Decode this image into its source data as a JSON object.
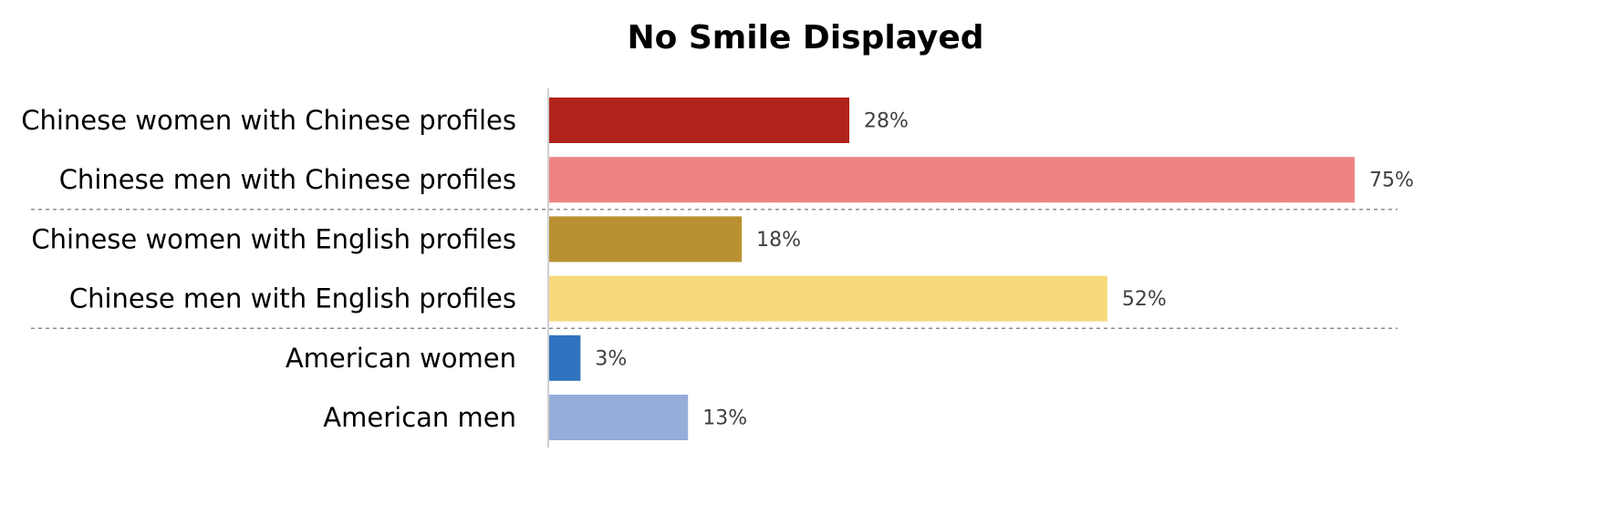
{
  "chart_data": {
    "type": "bar",
    "orientation": "horizontal",
    "title": "No Smile Displayed",
    "categories": [
      "Chinese women with Chinese profiles",
      "Chinese men with Chinese profiles",
      "Chinese women with English profiles",
      "Chinese men with English profiles",
      "American women",
      "American men"
    ],
    "values": [
      28,
      75,
      18,
      52,
      3,
      13
    ],
    "value_labels": [
      "28%",
      "75%",
      "18%",
      "52%",
      "3%",
      "13%"
    ],
    "unit": "%",
    "xlim": [
      0,
      75
    ],
    "bar_colors": [
      "#b0231b",
      "#ef8384",
      "#b99131",
      "#f8d97b",
      "#2f73bf",
      "#96acd9"
    ],
    "group_separators_after": [
      1,
      3
    ],
    "grid": false,
    "legend": "none"
  }
}
